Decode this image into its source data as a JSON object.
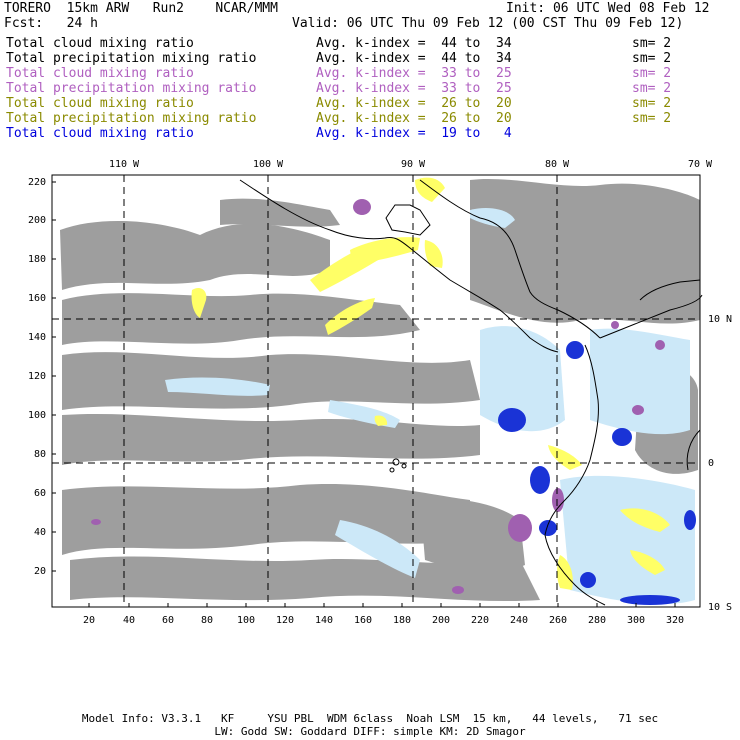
{
  "header": {
    "model": "TORERO  15km ARW   Run2    NCAR/MMM",
    "init": "Init: 06 UTC Wed 08 Feb 12",
    "fcst": "Fcst:   24 h",
    "valid": "Valid: 06 UTC Thu 09 Feb 12 (00 CST Thu 09 Feb 12)"
  },
  "legend": [
    {
      "field": "Total cloud mixing ratio",
      "index": "Avg. k-index =  44 to  34",
      "sm": "sm= 2",
      "color": "#000000"
    },
    {
      "field": "Total precipitation mixing ratio",
      "index": "Avg. k-index =  44 to  34",
      "sm": "sm= 2",
      "color": "#000000"
    },
    {
      "field": "Total cloud mixing ratio",
      "index": "Avg. k-index =  33 to  25",
      "sm": "sm= 2",
      "color": "#b060c0"
    },
    {
      "field": "Total precipitation mixing ratio",
      "index": "Avg. k-index =  33 to  25",
      "sm": "sm= 2",
      "color": "#b060c0"
    },
    {
      "field": "Total cloud mixing ratio",
      "index": "Avg. k-index =  26 to  20",
      "sm": "sm= 2",
      "color": "#8a8a00"
    },
    {
      "field": "Total precipitation mixing ratio",
      "index": "Avg. k-index =  26 to  20",
      "sm": "sm= 2",
      "color": "#8a8a00"
    },
    {
      "field": "Total cloud mixing ratio",
      "index": "Avg. k-index =  19 to   4",
      "sm": "",
      "color": "#0000dd"
    }
  ],
  "map": {
    "lon_labels": [
      "110 W",
      "100 W",
      "90 W",
      "80 W",
      "70 W"
    ],
    "lat_labels": [
      "10 N",
      "0",
      "10 S"
    ],
    "y_ticks": [
      "220",
      "200",
      "180",
      "160",
      "140",
      "120",
      "100",
      "80",
      "60",
      "40",
      "20"
    ],
    "x_ticks": [
      "20",
      "40",
      "60",
      "80",
      "100",
      "120",
      "140",
      "160",
      "180",
      "200",
      "220",
      "240",
      "260",
      "280",
      "300",
      "320"
    ]
  },
  "footer": {
    "line1": "Model Info: V3.3.1   KF     YSU PBL  WDM 6class  Noah LSM  15 km,   44 levels,   71 sec",
    "line2": "LW: Godd SW: Goddard DIFF: simple KM: 2D Smagor"
  },
  "colors": {
    "gray_cloud": "#9e9e9e",
    "light_blue": "#cce8f8",
    "blue": "#1a33d6",
    "purple": "#a060b0",
    "yellow": "#ffff66"
  }
}
